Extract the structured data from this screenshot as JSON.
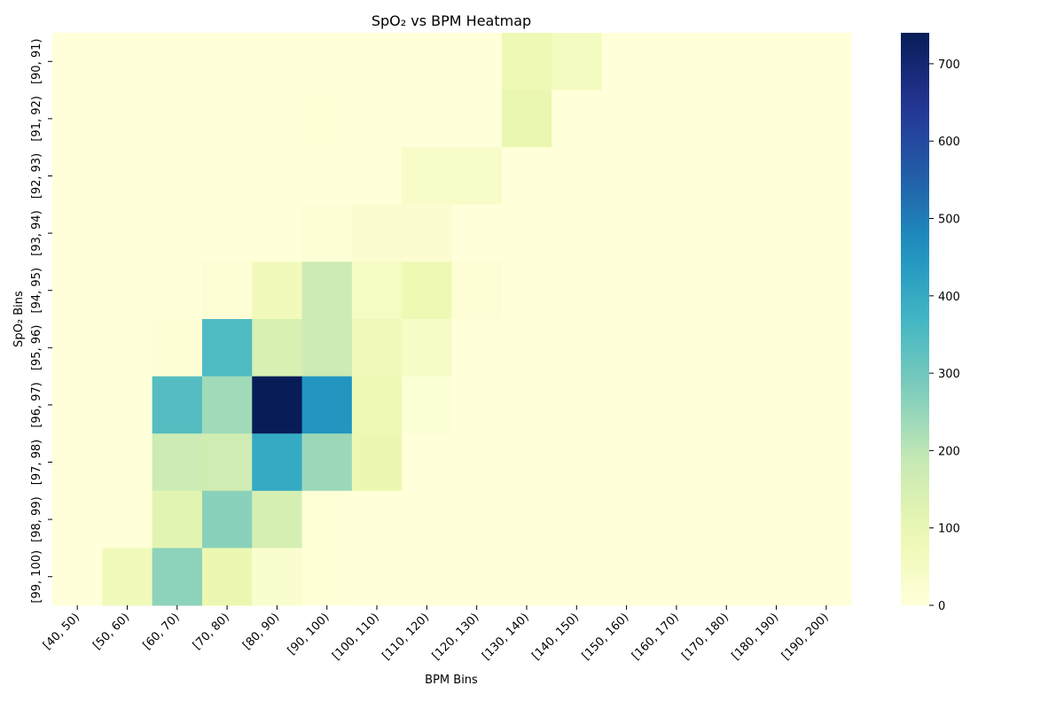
{
  "chart_data": {
    "type": "heatmap",
    "title": "SpO₂ vs BPM Heatmap",
    "xlabel": "BPM Bins",
    "ylabel": "SpO₂ Bins",
    "x_categories": [
      "[40, 50)",
      "[50, 60)",
      "[60, 70)",
      "[70, 80)",
      "[80, 90)",
      "[90, 100)",
      "[100, 110)",
      "[110, 120)",
      "[120, 130)",
      "[130, 140)",
      "[140, 150)",
      "[150, 160)",
      "[160, 170)",
      "[170, 180)",
      "[180, 190)",
      "[190, 200)"
    ],
    "y_categories": [
      "[90, 91)",
      "[91, 92)",
      "[92, 93)",
      "[93, 94)",
      "[94, 95)",
      "[95, 96)",
      "[96, 97)",
      "[97, 98)",
      "[98, 99)",
      "[99, 100)"
    ],
    "values": [
      [
        0,
        0,
        0,
        0,
        0,
        0,
        0,
        0,
        0,
        80,
        55,
        0,
        0,
        0,
        0,
        0
      ],
      [
        0,
        0,
        0,
        0,
        0,
        5,
        0,
        0,
        0,
        100,
        0,
        0,
        0,
        0,
        0,
        0
      ],
      [
        0,
        0,
        0,
        0,
        0,
        0,
        0,
        40,
        40,
        0,
        0,
        0,
        0,
        0,
        0,
        0
      ],
      [
        0,
        0,
        0,
        0,
        0,
        10,
        20,
        20,
        0,
        0,
        0,
        0,
        0,
        0,
        0,
        0
      ],
      [
        0,
        0,
        0,
        10,
        70,
        170,
        50,
        85,
        10,
        0,
        0,
        0,
        0,
        0,
        0,
        0
      ],
      [
        0,
        0,
        10,
        350,
        140,
        170,
        75,
        45,
        0,
        0,
        0,
        0,
        0,
        0,
        0,
        0
      ],
      [
        0,
        0,
        340,
        235,
        740,
        450,
        80,
        15,
        0,
        0,
        0,
        0,
        0,
        0,
        0,
        0
      ],
      [
        0,
        0,
        170,
        165,
        400,
        240,
        95,
        0,
        0,
        0,
        0,
        0,
        0,
        0,
        0,
        0
      ],
      [
        0,
        0,
        120,
        265,
        150,
        5,
        0,
        0,
        0,
        0,
        0,
        0,
        0,
        0,
        0,
        0
      ],
      [
        0,
        70,
        260,
        95,
        25,
        5,
        0,
        0,
        0,
        0,
        0,
        0,
        0,
        0,
        0,
        0
      ]
    ],
    "vmin": 0,
    "vmax": 740,
    "colormap": "YlGnBu",
    "colorbar_ticks": [
      0,
      100,
      200,
      300,
      400,
      500,
      600,
      700
    ],
    "grid": false,
    "legend": "colorbar-right"
  }
}
